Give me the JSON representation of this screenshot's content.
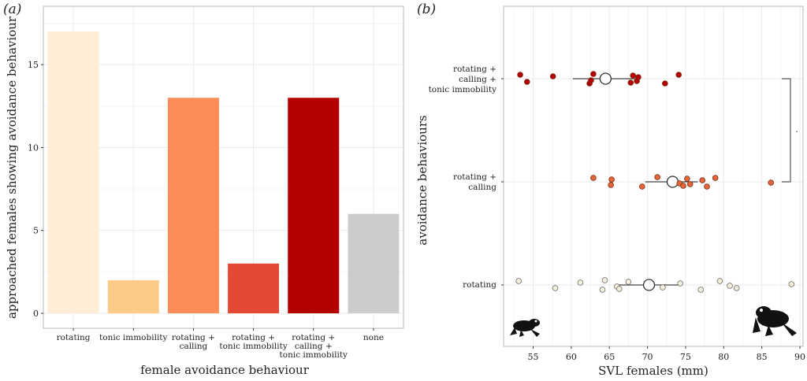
{
  "chart_data": [
    {
      "type": "bar",
      "panel_label": "(a)",
      "title": "",
      "xlabel": "female avoidance behaviour",
      "ylabel": "approached females showing avoidance behaviour",
      "ylim": [
        0,
        18
      ],
      "yticks": [
        0,
        5,
        10,
        15
      ],
      "grid": true,
      "categories": [
        [
          "rotating"
        ],
        [
          "tonic immobility"
        ],
        [
          "rotating +",
          "calling"
        ],
        [
          "rotating +",
          "tonic immobility"
        ],
        [
          "rotating +",
          "calling +",
          "tonic immobility"
        ],
        [
          "none"
        ]
      ],
      "values": [
        17,
        2,
        13,
        3,
        13,
        6
      ],
      "colors": [
        "#feeed8",
        "#fdcb88",
        "#fc8d59",
        "#e34a33",
        "#b30000",
        "#cccccc"
      ]
    },
    {
      "type": "scatter",
      "panel_label": "(b)",
      "title": "",
      "xlabel": "SVL females (mm)",
      "ylabel": "avoidance behaviours",
      "xlim": [
        52,
        90
      ],
      "xticks": [
        55,
        60,
        65,
        70,
        75,
        80,
        85,
        90
      ],
      "grid": true,
      "significance_bracket": {
        "between": [
          "rotating + calling + tonic immobility",
          "rotating + calling"
        ],
        "label": "."
      },
      "groups": [
        {
          "label": [
            "rotating +",
            "calling +",
            "tonic immobility"
          ],
          "color": "#b30000",
          "points": [
            53.3,
            54.2,
            57.6,
            62.4,
            62.9,
            62.6,
            67.8,
            68.1,
            68.6,
            68.8,
            72.3,
            74.1
          ],
          "mean": 64.5,
          "range": [
            60.2,
            68.6
          ]
        },
        {
          "label": [
            "rotating +",
            "calling"
          ],
          "color": "#e3673a",
          "points": [
            62.9,
            65.2,
            65.3,
            69.3,
            71.3,
            74.2,
            74.7,
            75.2,
            75.6,
            77.2,
            77.8,
            78.9,
            86.2
          ],
          "mean": 73.3,
          "range": [
            69.7,
            76.6
          ]
        },
        {
          "label": [
            "rotating"
          ],
          "color": "#f5f0dc",
          "points": [
            53.1,
            57.9,
            61.2,
            64.1,
            64.4,
            66.0,
            66.3,
            67.5,
            72.0,
            74.3,
            77.0,
            79.5,
            80.8,
            81.7,
            88.9
          ],
          "mean": 70.2,
          "range": [
            65.9,
            74.3
          ]
        }
      ]
    }
  ]
}
